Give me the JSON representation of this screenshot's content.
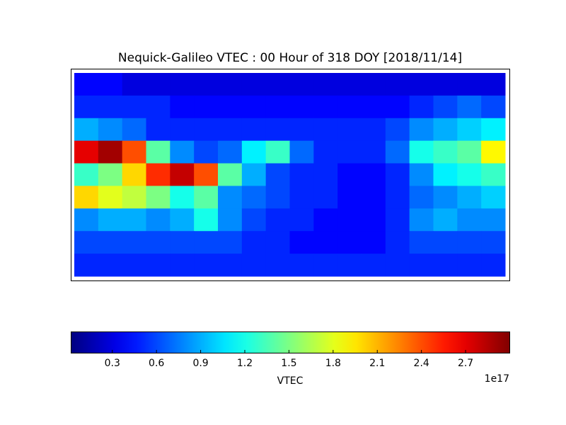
{
  "chart_data": {
    "type": "heatmap",
    "title": "Nequick-Galileo VTEC : 00 Hour of 318 DOY [2018/11/14]",
    "z": [
      [
        0.4,
        0.4,
        0.3,
        0.3,
        0.3,
        0.3,
        0.3,
        0.3,
        0.3,
        0.3,
        0.3,
        0.3,
        0.3,
        0.3,
        0.3,
        0.3,
        0.3,
        0.3
      ],
      [
        0.5,
        0.5,
        0.5,
        0.5,
        0.4,
        0.4,
        0.4,
        0.4,
        0.4,
        0.4,
        0.4,
        0.4,
        0.4,
        0.4,
        0.5,
        0.6,
        0.7,
        0.6
      ],
      [
        0.9,
        0.8,
        0.7,
        0.5,
        0.5,
        0.5,
        0.5,
        0.5,
        0.5,
        0.5,
        0.5,
        0.5,
        0.5,
        0.6,
        0.8,
        0.9,
        1.0,
        1.1
      ],
      [
        2.7,
        2.9,
        2.4,
        1.4,
        0.8,
        0.6,
        0.7,
        1.1,
        1.3,
        0.7,
        0.5,
        0.5,
        0.5,
        0.7,
        1.2,
        1.3,
        1.4,
        1.9
      ],
      [
        1.3,
        1.5,
        2.0,
        2.5,
        2.8,
        2.4,
        1.4,
        0.9,
        0.6,
        0.5,
        0.5,
        0.4,
        0.4,
        0.5,
        0.8,
        1.1,
        1.2,
        1.3
      ],
      [
        2.0,
        1.8,
        1.7,
        1.5,
        1.2,
        1.4,
        0.8,
        0.7,
        0.6,
        0.5,
        0.5,
        0.4,
        0.4,
        0.5,
        0.7,
        0.8,
        0.9,
        1.0
      ],
      [
        0.8,
        0.9,
        0.9,
        0.8,
        0.9,
        1.2,
        0.8,
        0.6,
        0.5,
        0.5,
        0.4,
        0.4,
        0.4,
        0.5,
        0.8,
        0.9,
        0.8,
        0.8
      ],
      [
        0.6,
        0.6,
        0.6,
        0.6,
        0.6,
        0.6,
        0.6,
        0.5,
        0.5,
        0.4,
        0.4,
        0.4,
        0.4,
        0.5,
        0.6,
        0.6,
        0.6,
        0.6
      ],
      [
        0.5,
        0.5,
        0.5,
        0.5,
        0.5,
        0.5,
        0.5,
        0.5,
        0.5,
        0.5,
        0.5,
        0.5,
        0.5,
        0.5,
        0.5,
        0.5,
        0.5,
        0.5
      ]
    ],
    "colormap": "jet",
    "clim": [
      0.02,
      3.0
    ],
    "colorbar_ticks": [
      0.3,
      0.6,
      0.9,
      1.2,
      1.5,
      1.8,
      2.1,
      2.4,
      2.7
    ],
    "colorbar_label": "VTEC",
    "colorbar_offset": "1e17"
  }
}
